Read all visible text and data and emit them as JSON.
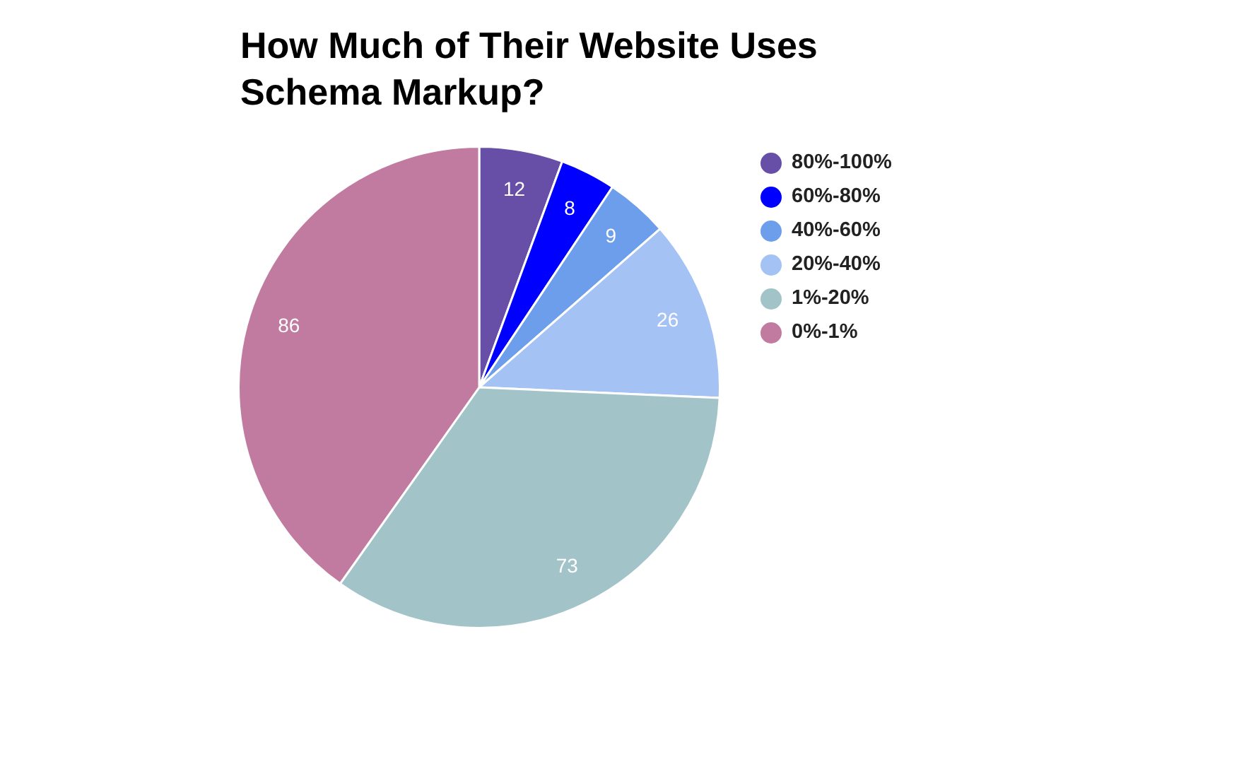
{
  "chart_data": {
    "type": "pie",
    "title": "How Much of Their Website Uses Schema Markup?",
    "categories": [
      "80%-100%",
      "60%-80%",
      "40%-60%",
      "20%-40%",
      "1%-20%",
      "0%-1%"
    ],
    "values": [
      12,
      8,
      9,
      26,
      73,
      86
    ],
    "colors": [
      "#674ea7",
      "#0000ff",
      "#6d9eeb",
      "#a4c2f4",
      "#a2c4c9",
      "#c27ba0"
    ],
    "data_labels": true,
    "legend": "right"
  }
}
